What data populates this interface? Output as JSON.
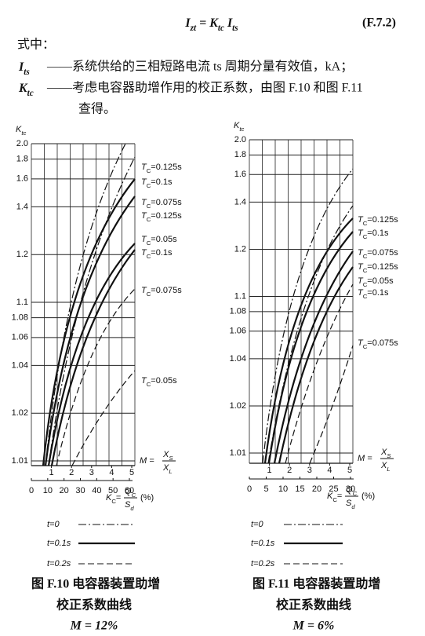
{
  "formula": {
    "parts": [
      [
        "I",
        ""
      ],
      [
        "zt",
        "sub"
      ],
      [
        " = ",
        ""
      ],
      [
        "K",
        ""
      ],
      [
        "tc",
        "sub"
      ],
      [
        " I",
        ""
      ],
      [
        "ts",
        "sub"
      ]
    ],
    "number": "(F.7.2)"
  },
  "where": "式中：",
  "definitions": [
    {
      "symbol": "I",
      "sub": "ts",
      "lines": [
        "——系统供给的三相短路电流 ts 周期分量有效值，kA；"
      ]
    },
    {
      "symbol": "K",
      "sub": "tc",
      "lines": [
        "——考虑电容器助增作用的校正系数，由图 F.10 和图 F.11",
        "查得。"
      ]
    }
  ],
  "figures": [
    {
      "y_label": {
        "main": "K",
        "sub": "tc"
      },
      "yticks": [
        1.01,
        1.02,
        1.04,
        1.06,
        1.08,
        1.1,
        1.2,
        1.4,
        1.6,
        1.8,
        {
          "value": 2,
          "label": "2.0"
        }
      ],
      "curve_symbol": {
        "main": "T",
        "sub": "C"
      },
      "curve_labels": [
        "=0.125s",
        "=0.1s",
        "=0.075s",
        "=0.125s",
        "=0.05s",
        "=0.1s",
        "=0.075s",
        "=0.05s"
      ],
      "m_ticks": [
        1,
        2,
        3,
        4,
        5
      ],
      "m_label": {
        "lhs": "M =",
        "num": "X",
        "num_sub": "S",
        "den": "X",
        "den_sub": "L"
      },
      "kc_ticks": [
        0,
        10,
        20,
        30,
        40,
        50,
        60
      ],
      "kc_label": {
        "lhs": "K",
        "lhs_sub": "C",
        "eq": "=",
        "num": "Q",
        "num_sub": "C",
        "den": "S",
        "den_sub": "d",
        "unit": "(%)"
      },
      "legend": [
        "t=0",
        "t=0.1s",
        "t=0.2s"
      ],
      "caption": [
        "图 F.10    电容器装置助增",
        "校正系数曲线",
        "M = 12%"
      ]
    },
    {
      "y_label": {
        "main": "K",
        "sub": "tc"
      },
      "yticks": [
        1.01,
        1.02,
        1.04,
        1.06,
        1.08,
        1.1,
        1.2,
        1.4,
        1.6,
        1.8,
        {
          "value": 2,
          "label": "2.0"
        }
      ],
      "curve_symbol": {
        "main": "T",
        "sub": "C"
      },
      "curve_labels": [
        "=0.125s",
        "=0.1s",
        "=0.075s",
        "=0.125s",
        "=0.05s",
        "=0.1s",
        "=0.075s"
      ],
      "m_ticks": [
        1,
        2,
        3,
        4,
        5
      ],
      "m_label": {
        "lhs": "M =",
        "num": "X",
        "num_sub": "S",
        "den": "X",
        "den_sub": "L"
      },
      "kc_ticks": [
        0,
        5,
        10,
        15,
        20,
        25,
        30
      ],
      "kc_label": {
        "lhs": "K",
        "lhs_sub": "C",
        "eq": "=",
        "num": "Q",
        "num_sub": "C",
        "den": "S",
        "den_sub": "d",
        "unit": "(%)"
      },
      "legend": [
        "t=0",
        "t=0.1s",
        "t=0.2s"
      ],
      "caption": [
        "图 F.11    电容器装置助增",
        "校正系数曲线",
        "M = 6%"
      ]
    }
  ]
}
